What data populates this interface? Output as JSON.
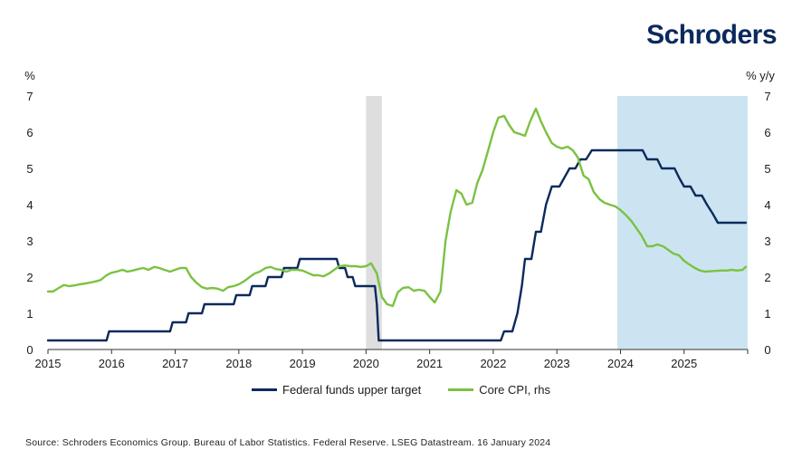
{
  "logo": "Schroders",
  "source": "Source: Schroders Economics Group. Bureau of Labor Statistics. Federal Reserve. LSEG Datastream. 16 January 2024",
  "colors": {
    "fed": "#0a2a5c",
    "cpi": "#7bc242",
    "forecast": "#cce4f1",
    "covid": "#dedede"
  },
  "chart_data": {
    "type": "line",
    "title": "",
    "ylabel_left": "%",
    "ylabel_right": "% y/y",
    "xlim": [
      2015,
      2026
    ],
    "ylim": [
      0,
      7
    ],
    "grid": false,
    "legend_position": "bottom",
    "x_ticks": [
      "2015",
      "2016",
      "2017",
      "2018",
      "2019",
      "2020",
      "2021",
      "2022",
      "2023",
      "2024",
      "2025"
    ],
    "y_ticks": [
      "0",
      "1",
      "2",
      "3",
      "4",
      "5",
      "6",
      "7"
    ],
    "shaded_regions": [
      {
        "name": "recession",
        "x": [
          2020.0,
          2020.25
        ]
      },
      {
        "name": "forecast",
        "x": [
          2023.95,
          2026.0
        ]
      }
    ],
    "series": [
      {
        "name": "Federal funds upper target",
        "axis": "left",
        "points": [
          [
            2015.0,
            0.25
          ],
          [
            2015.92,
            0.25
          ],
          [
            2015.96,
            0.5
          ],
          [
            2016.92,
            0.5
          ],
          [
            2016.96,
            0.75
          ],
          [
            2017.17,
            0.75
          ],
          [
            2017.21,
            1.0
          ],
          [
            2017.42,
            1.0
          ],
          [
            2017.46,
            1.25
          ],
          [
            2017.92,
            1.25
          ],
          [
            2017.96,
            1.5
          ],
          [
            2018.17,
            1.5
          ],
          [
            2018.21,
            1.75
          ],
          [
            2018.42,
            1.75
          ],
          [
            2018.46,
            2.0
          ],
          [
            2018.67,
            2.0
          ],
          [
            2018.71,
            2.25
          ],
          [
            2018.92,
            2.25
          ],
          [
            2018.96,
            2.5
          ],
          [
            2019.54,
            2.5
          ],
          [
            2019.58,
            2.25
          ],
          [
            2019.67,
            2.25
          ],
          [
            2019.71,
            2.0
          ],
          [
            2019.79,
            2.0
          ],
          [
            2019.83,
            1.75
          ],
          [
            2020.14,
            1.75
          ],
          [
            2020.17,
            1.25
          ],
          [
            2020.2,
            0.25
          ],
          [
            2022.05,
            0.25
          ],
          [
            2022.12,
            0.25
          ],
          [
            2022.17,
            0.5
          ],
          [
            2022.3,
            0.5
          ],
          [
            2022.38,
            1.0
          ],
          [
            2022.45,
            1.75
          ],
          [
            2022.5,
            2.5
          ],
          [
            2022.6,
            2.5
          ],
          [
            2022.67,
            3.25
          ],
          [
            2022.75,
            3.25
          ],
          [
            2022.83,
            4.0
          ],
          [
            2022.92,
            4.5
          ],
          [
            2023.04,
            4.5
          ],
          [
            2023.12,
            4.75
          ],
          [
            2023.2,
            5.0
          ],
          [
            2023.29,
            5.0
          ],
          [
            2023.37,
            5.25
          ],
          [
            2023.46,
            5.25
          ],
          [
            2023.55,
            5.5
          ],
          [
            2024.35,
            5.5
          ],
          [
            2024.42,
            5.25
          ],
          [
            2024.58,
            5.25
          ],
          [
            2024.65,
            5.0
          ],
          [
            2024.85,
            5.0
          ],
          [
            2024.92,
            4.75
          ],
          [
            2025.0,
            4.5
          ],
          [
            2025.1,
            4.5
          ],
          [
            2025.18,
            4.25
          ],
          [
            2025.28,
            4.25
          ],
          [
            2025.36,
            4.0
          ],
          [
            2025.45,
            3.75
          ],
          [
            2025.53,
            3.5
          ],
          [
            2025.97,
            3.5
          ]
        ]
      },
      {
        "name": "Core CPI, rhs",
        "axis": "right",
        "points": [
          [
            2015.0,
            1.6
          ],
          [
            2015.08,
            1.6
          ],
          [
            2015.17,
            1.7
          ],
          [
            2015.25,
            1.78
          ],
          [
            2015.33,
            1.75
          ],
          [
            2015.42,
            1.77
          ],
          [
            2015.5,
            1.8
          ],
          [
            2015.58,
            1.82
          ],
          [
            2015.67,
            1.85
          ],
          [
            2015.75,
            1.88
          ],
          [
            2015.83,
            1.92
          ],
          [
            2015.92,
            2.05
          ],
          [
            2016.0,
            2.12
          ],
          [
            2016.08,
            2.15
          ],
          [
            2016.17,
            2.2
          ],
          [
            2016.25,
            2.15
          ],
          [
            2016.33,
            2.18
          ],
          [
            2016.42,
            2.22
          ],
          [
            2016.5,
            2.25
          ],
          [
            2016.58,
            2.2
          ],
          [
            2016.67,
            2.28
          ],
          [
            2016.75,
            2.25
          ],
          [
            2016.83,
            2.2
          ],
          [
            2016.92,
            2.15
          ],
          [
            2017.0,
            2.2
          ],
          [
            2017.08,
            2.25
          ],
          [
            2017.17,
            2.25
          ],
          [
            2017.25,
            2.0
          ],
          [
            2017.33,
            1.85
          ],
          [
            2017.42,
            1.72
          ],
          [
            2017.5,
            1.68
          ],
          [
            2017.58,
            1.7
          ],
          [
            2017.67,
            1.68
          ],
          [
            2017.75,
            1.62
          ],
          [
            2017.83,
            1.72
          ],
          [
            2017.92,
            1.75
          ],
          [
            2018.0,
            1.8
          ],
          [
            2018.08,
            1.88
          ],
          [
            2018.17,
            2.0
          ],
          [
            2018.25,
            2.1
          ],
          [
            2018.33,
            2.15
          ],
          [
            2018.42,
            2.25
          ],
          [
            2018.5,
            2.28
          ],
          [
            2018.58,
            2.22
          ],
          [
            2018.67,
            2.2
          ],
          [
            2018.75,
            2.15
          ],
          [
            2018.83,
            2.2
          ],
          [
            2018.92,
            2.2
          ],
          [
            2019.0,
            2.18
          ],
          [
            2019.08,
            2.12
          ],
          [
            2019.17,
            2.05
          ],
          [
            2019.25,
            2.05
          ],
          [
            2019.33,
            2.02
          ],
          [
            2019.42,
            2.1
          ],
          [
            2019.5,
            2.2
          ],
          [
            2019.58,
            2.3
          ],
          [
            2019.67,
            2.32
          ],
          [
            2019.75,
            2.3
          ],
          [
            2019.83,
            2.3
          ],
          [
            2019.92,
            2.28
          ],
          [
            2020.0,
            2.3
          ],
          [
            2020.08,
            2.38
          ],
          [
            2020.17,
            2.1
          ],
          [
            2020.25,
            1.45
          ],
          [
            2020.33,
            1.25
          ],
          [
            2020.42,
            1.2
          ],
          [
            2020.5,
            1.58
          ],
          [
            2020.58,
            1.7
          ],
          [
            2020.67,
            1.72
          ],
          [
            2020.75,
            1.62
          ],
          [
            2020.83,
            1.65
          ],
          [
            2020.92,
            1.62
          ],
          [
            2021.0,
            1.45
          ],
          [
            2021.08,
            1.3
          ],
          [
            2021.17,
            1.6
          ],
          [
            2021.25,
            3.0
          ],
          [
            2021.33,
            3.8
          ],
          [
            2021.42,
            4.4
          ],
          [
            2021.5,
            4.3
          ],
          [
            2021.58,
            4.0
          ],
          [
            2021.67,
            4.05
          ],
          [
            2021.75,
            4.6
          ],
          [
            2021.83,
            4.95
          ],
          [
            2021.92,
            5.5
          ],
          [
            2022.0,
            6.0
          ],
          [
            2022.08,
            6.4
          ],
          [
            2022.17,
            6.45
          ],
          [
            2022.25,
            6.2
          ],
          [
            2022.33,
            6.0
          ],
          [
            2022.42,
            5.95
          ],
          [
            2022.5,
            5.9
          ],
          [
            2022.58,
            6.3
          ],
          [
            2022.67,
            6.65
          ],
          [
            2022.75,
            6.3
          ],
          [
            2022.83,
            6.0
          ],
          [
            2022.92,
            5.7
          ],
          [
            2023.0,
            5.6
          ],
          [
            2023.08,
            5.55
          ],
          [
            2023.17,
            5.6
          ],
          [
            2023.25,
            5.5
          ],
          [
            2023.33,
            5.3
          ],
          [
            2023.42,
            4.8
          ],
          [
            2023.5,
            4.7
          ],
          [
            2023.58,
            4.35
          ],
          [
            2023.67,
            4.15
          ],
          [
            2023.75,
            4.05
          ],
          [
            2023.83,
            4.0
          ],
          [
            2023.92,
            3.95
          ],
          [
            2024.0,
            3.85
          ],
          [
            2024.08,
            3.72
          ],
          [
            2024.17,
            3.55
          ],
          [
            2024.25,
            3.35
          ],
          [
            2024.33,
            3.15
          ],
          [
            2024.42,
            2.85
          ],
          [
            2024.5,
            2.85
          ],
          [
            2024.58,
            2.9
          ],
          [
            2024.67,
            2.85
          ],
          [
            2024.75,
            2.75
          ],
          [
            2024.83,
            2.65
          ],
          [
            2024.92,
            2.6
          ],
          [
            2025.0,
            2.45
          ],
          [
            2025.08,
            2.35
          ],
          [
            2025.17,
            2.25
          ],
          [
            2025.25,
            2.18
          ],
          [
            2025.33,
            2.15
          ],
          [
            2025.42,
            2.16
          ],
          [
            2025.5,
            2.17
          ],
          [
            2025.58,
            2.18
          ],
          [
            2025.67,
            2.18
          ],
          [
            2025.75,
            2.2
          ],
          [
            2025.83,
            2.18
          ],
          [
            2025.92,
            2.2
          ],
          [
            2025.97,
            2.28
          ]
        ]
      }
    ]
  }
}
